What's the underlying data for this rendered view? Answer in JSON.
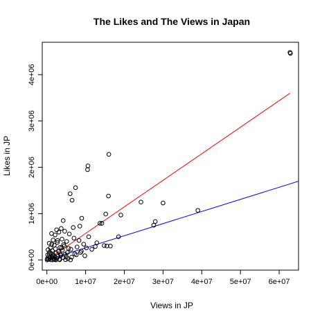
{
  "chart_data": {
    "type": "scatter",
    "title": "The Likes and The Views in Japan",
    "xlabel": "Views in JP",
    "ylabel": "Likes in JP",
    "xlim": [
      -1200000,
      65000000
    ],
    "ylim": [
      -220000,
      4700000
    ],
    "x_ticks": [
      0,
      10000000,
      20000000,
      30000000,
      40000000,
      50000000,
      60000000
    ],
    "x_tick_labels": [
      "0e+00",
      "1e+07",
      "2e+07",
      "3e+07",
      "4e+07",
      "5e+07",
      "6e+07"
    ],
    "y_ticks": [
      0,
      1000000,
      2000000,
      3000000,
      4000000
    ],
    "y_tick_labels": [
      "0e+00",
      "1e+06",
      "2e+06",
      "3e+06",
      "4e+06"
    ],
    "grid": false,
    "legend": "none",
    "point_style": "open-circle",
    "colors": {
      "points": "#000000",
      "red_line": "#ff0000",
      "blue_line": "#0000ff"
    },
    "series": [
      {
        "values": [
          [
            62800000,
            4480000
          ],
          [
            62900000,
            4460000
          ],
          [
            16000000,
            2280000
          ],
          [
            10600000,
            2030000
          ],
          [
            10500000,
            1950000
          ],
          [
            7400000,
            1560000
          ],
          [
            6000000,
            1430000
          ],
          [
            15900000,
            1380000
          ],
          [
            6500000,
            1290000
          ],
          [
            24300000,
            1250000
          ],
          [
            30000000,
            1230000
          ],
          [
            39000000,
            1070000
          ],
          [
            15200000,
            990000
          ],
          [
            19100000,
            970000
          ],
          [
            9000000,
            900000
          ],
          [
            4200000,
            850000
          ],
          [
            28000000,
            830000
          ],
          [
            14200000,
            790000
          ],
          [
            13700000,
            790000
          ],
          [
            27600000,
            750000
          ],
          [
            8500000,
            730000
          ],
          [
            6800000,
            700000
          ],
          [
            3700000,
            680000
          ],
          [
            2500000,
            650000
          ],
          [
            4600000,
            620000
          ],
          [
            3100000,
            600000
          ],
          [
            1200000,
            570000
          ],
          [
            5800000,
            560000
          ],
          [
            2100000,
            540000
          ],
          [
            10800000,
            500000
          ],
          [
            18500000,
            500000
          ],
          [
            7000000,
            470000
          ],
          [
            3900000,
            450000
          ],
          [
            1600000,
            430000
          ],
          [
            8300000,
            420000
          ],
          [
            5100000,
            400000
          ],
          [
            2700000,
            380000
          ],
          [
            12900000,
            370000
          ],
          [
            600000,
            360000
          ],
          [
            9500000,
            340000
          ],
          [
            4300000,
            330000
          ],
          [
            1900000,
            320000
          ],
          [
            14800000,
            310000
          ],
          [
            15500000,
            300000
          ],
          [
            16400000,
            300000
          ],
          [
            12500000,
            290000
          ],
          [
            7800000,
            280000
          ],
          [
            3400000,
            270000
          ],
          [
            900000,
            260000
          ],
          [
            10200000,
            260000
          ],
          [
            5600000,
            250000
          ],
          [
            2200000,
            240000
          ],
          [
            6200000,
            230000
          ],
          [
            300000,
            220000
          ],
          [
            4000000,
            210000
          ],
          [
            1400000,
            200000
          ],
          [
            8900000,
            190000
          ],
          [
            3000000,
            180000
          ],
          [
            700000,
            170000
          ],
          [
            5300000,
            160000
          ],
          [
            2400000,
            150000
          ],
          [
            1100000,
            140000
          ],
          [
            7200000,
            130000
          ],
          [
            4700000,
            120000
          ],
          [
            200000,
            110000
          ],
          [
            1700000,
            100000
          ],
          [
            3600000,
            95000
          ],
          [
            9800000,
            90000
          ],
          [
            2900000,
            80000
          ],
          [
            500000,
            70000
          ],
          [
            6400000,
            60000
          ],
          [
            1300000,
            55000
          ],
          [
            4200000,
            50000
          ],
          [
            800000,
            40000
          ],
          [
            2600000,
            35000
          ],
          [
            5400000,
            30000
          ],
          [
            100000,
            25000
          ],
          [
            1800000,
            20000
          ],
          [
            3200000,
            15000
          ],
          [
            400000,
            12000
          ],
          [
            2000000,
            8000
          ],
          [
            4800000,
            6000
          ],
          [
            1000000,
            4000
          ],
          [
            3300000,
            3000
          ],
          [
            6100000,
            2000
          ],
          [
            1500000,
            1000
          ],
          [
            50000,
            500
          ],
          [
            2300000,
            500
          ],
          [
            7600000,
            110000
          ],
          [
            8700000,
            160000
          ],
          [
            11600000,
            230000
          ],
          [
            3800000,
            260000
          ],
          [
            1250000,
            340000
          ],
          [
            2750000,
            420000
          ],
          [
            4500000,
            300000
          ],
          [
            600000,
            130000
          ],
          [
            1450000,
            90000
          ],
          [
            2050000,
            60000
          ],
          [
            3500000,
            120000
          ],
          [
            5000000,
            70000
          ]
        ]
      }
    ],
    "lines": [
      {
        "color": "#ff0000",
        "x": [
          0,
          62800000
        ],
        "y": [
          0,
          3600000
        ]
      },
      {
        "color": "#0000ff",
        "x": [
          0,
          65000000
        ],
        "y": [
          0,
          1700000
        ]
      }
    ]
  }
}
